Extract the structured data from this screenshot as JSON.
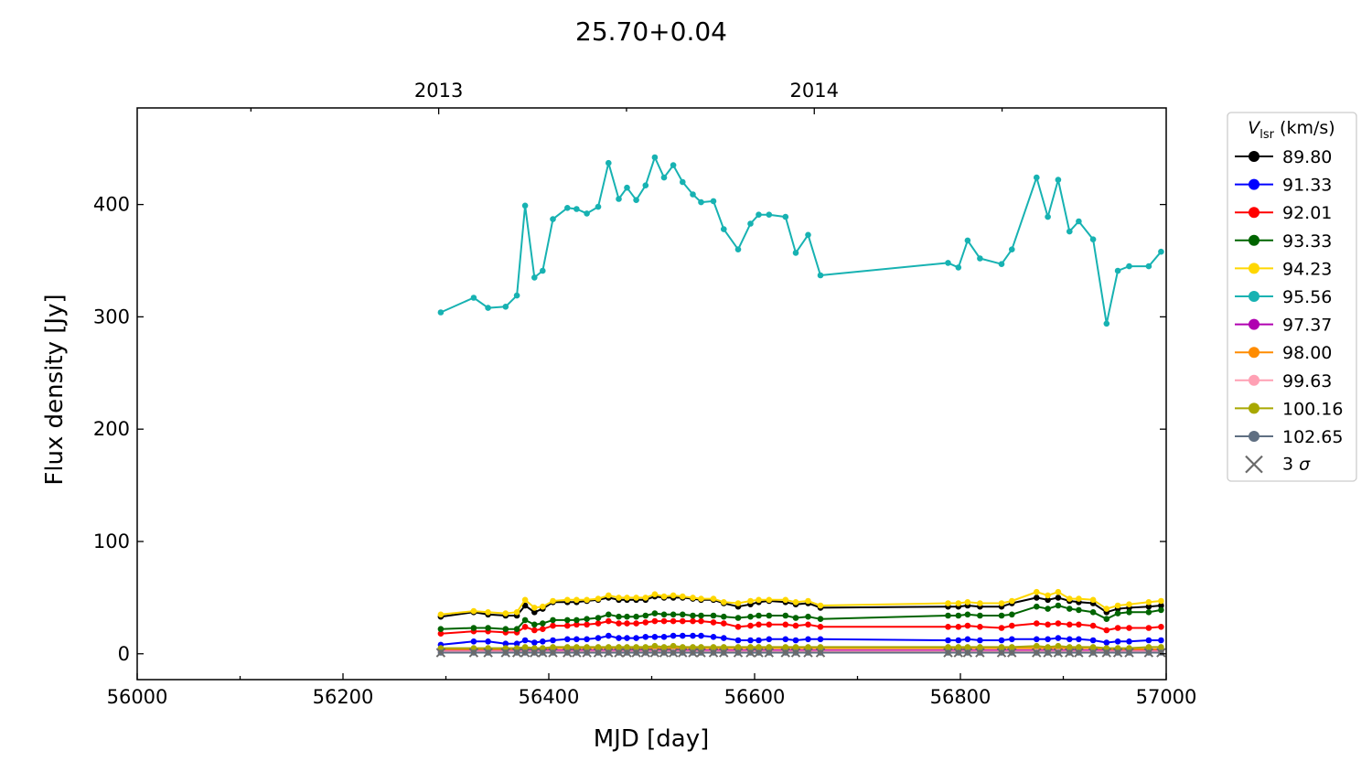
{
  "chart_data": {
    "type": "line",
    "title": "25.70+0.04",
    "xlabel": "MJD [day]",
    "ylabel": "Flux density [Jy]",
    "xlim": [
      56000,
      57000
    ],
    "ylim": [
      -23,
      486
    ],
    "x_ticks": [
      "56000",
      "56200",
      "56400",
      "56600",
      "56800",
      "57000"
    ],
    "y_ticks": [
      "0",
      "100",
      "200",
      "300",
      "400"
    ],
    "top_axis_ticks": [
      {
        "label": "2013",
        "x": 56293
      },
      {
        "label": "2014",
        "x": 56658
      }
    ],
    "grid": false,
    "legend_title": "V_lsr (km/s)",
    "legend_title_main": "V",
    "legend_title_sub": "lsr",
    "legend_title_unit": " (km/s)",
    "legend_placement": "outside-right",
    "x": [
      56295,
      56327,
      56341,
      56358,
      56369,
      56377,
      56386,
      56394,
      56404,
      56418,
      56427,
      56437,
      56448,
      56458,
      56468,
      56476,
      56485,
      56494,
      56503,
      56512,
      56521,
      56530,
      56540,
      56548,
      56560,
      56570,
      56584,
      56596,
      56604,
      56614,
      56630,
      56640,
      56652,
      56664,
      56788,
      56798,
      56807,
      56819,
      56840,
      56850,
      56874,
      56885,
      56895,
      56906,
      56915,
      56929,
      56942,
      56953,
      56964,
      56983,
      56995
    ],
    "series": [
      {
        "name": "89.80",
        "color": "#000000",
        "values": [
          33,
          37,
          35,
          34,
          34,
          43,
          37,
          40,
          46,
          46,
          46,
          47,
          48,
          50,
          48,
          48,
          48,
          48,
          51,
          50,
          50,
          50,
          49,
          48,
          48,
          45,
          42,
          44,
          46,
          47,
          46,
          44,
          45,
          41,
          42,
          42,
          43,
          42,
          42,
          45,
          50,
          48,
          50,
          47,
          46,
          45,
          37,
          40,
          41,
          42,
          43
        ]
      },
      {
        "name": "91.33",
        "color": "#0000ff",
        "values": [
          8,
          11,
          11,
          9,
          9,
          12,
          10,
          11,
          12,
          13,
          13,
          13,
          14,
          16,
          14,
          14,
          14,
          15,
          15,
          15,
          16,
          16,
          16,
          16,
          15,
          14,
          12,
          12,
          12,
          13,
          13,
          12,
          13,
          13,
          12,
          12,
          13,
          12,
          12,
          13,
          13,
          13,
          14,
          13,
          13,
          12,
          10,
          11,
          11,
          12,
          12
        ]
      },
      {
        "name": "92.01",
        "color": "#ff0000",
        "values": [
          18,
          20,
          20,
          19,
          19,
          24,
          21,
          22,
          25,
          25,
          26,
          26,
          27,
          29,
          27,
          27,
          27,
          28,
          29,
          29,
          29,
          29,
          29,
          29,
          28,
          27,
          24,
          25,
          26,
          26,
          26,
          25,
          26,
          24,
          24,
          24,
          25,
          24,
          23,
          25,
          27,
          26,
          27,
          26,
          26,
          25,
          21,
          23,
          23,
          23,
          24
        ]
      },
      {
        "name": "93.33",
        "color": "#006400",
        "values": [
          22,
          23,
          23,
          22,
          22,
          30,
          26,
          27,
          30,
          30,
          30,
          31,
          32,
          35,
          33,
          33,
          33,
          34,
          36,
          35,
          35,
          35,
          34,
          34,
          34,
          33,
          32,
          33,
          34,
          34,
          34,
          32,
          33,
          31,
          34,
          34,
          35,
          34,
          34,
          35,
          42,
          40,
          43,
          40,
          39,
          37,
          31,
          36,
          37,
          37,
          39
        ]
      },
      {
        "name": "94.23",
        "color": "#ffd700",
        "values": [
          35,
          38,
          37,
          36,
          37,
          48,
          41,
          42,
          47,
          48,
          48,
          48,
          49,
          52,
          50,
          50,
          50,
          50,
          53,
          51,
          52,
          51,
          50,
          49,
          49,
          46,
          45,
          47,
          48,
          48,
          48,
          46,
          47,
          43,
          45,
          45,
          46,
          45,
          45,
          47,
          55,
          52,
          55,
          49,
          49,
          48,
          40,
          43,
          44,
          46,
          47
        ]
      },
      {
        "name": "95.56",
        "color": "#17b2b2",
        "values": [
          304,
          317,
          308,
          309,
          319,
          399,
          335,
          341,
          387,
          397,
          396,
          392,
          398,
          437,
          405,
          415,
          404,
          417,
          442,
          424,
          435,
          420,
          409,
          402,
          403,
          378,
          360,
          383,
          391,
          391,
          389,
          357,
          373,
          337,
          348,
          344,
          368,
          352,
          347,
          360,
          424,
          389,
          422,
          376,
          385,
          369,
          294,
          341,
          345,
          345,
          358
        ]
      },
      {
        "name": "97.37",
        "color": "#b000b0",
        "values": [
          3,
          3,
          3,
          3,
          3,
          3,
          3,
          3,
          3,
          3,
          3,
          3,
          3,
          3,
          3,
          3,
          3,
          3,
          3,
          3,
          3,
          3,
          3,
          3,
          3,
          3,
          3,
          3,
          3,
          3,
          3,
          3,
          3,
          3,
          3,
          3,
          3,
          3,
          3,
          3,
          3,
          3,
          3,
          3,
          3,
          3,
          3,
          3,
          3,
          3,
          3
        ]
      },
      {
        "name": "98.00",
        "color": "#ff8c00",
        "values": [
          4,
          4,
          4,
          4,
          4,
          5,
          4,
          4,
          5,
          5,
          5,
          5,
          5,
          5,
          5,
          5,
          5,
          5,
          5,
          5,
          5,
          5,
          5,
          5,
          5,
          5,
          5,
          5,
          5,
          5,
          5,
          5,
          5,
          5,
          5,
          5,
          5,
          5,
          5,
          5,
          5,
          5,
          5,
          5,
          5,
          5,
          4,
          4,
          4,
          4,
          4
        ]
      },
      {
        "name": "99.63",
        "color": "#ffa0b4",
        "values": [
          2,
          2,
          2,
          2,
          2,
          2,
          2,
          2,
          2,
          2,
          2,
          2,
          2,
          2,
          2,
          2,
          2,
          2,
          2,
          2,
          2,
          2,
          2,
          2,
          2,
          2,
          2,
          2,
          2,
          2,
          2,
          2,
          2,
          2,
          2,
          2,
          2,
          2,
          2,
          2,
          2,
          2,
          2,
          2,
          2,
          2,
          2,
          2,
          2,
          2,
          2
        ]
      },
      {
        "name": "100.16",
        "color": "#a8a800",
        "values": [
          5,
          5,
          5,
          5,
          5,
          6,
          5,
          5,
          6,
          6,
          6,
          6,
          6,
          6,
          6,
          6,
          6,
          6,
          7,
          6,
          7,
          6,
          6,
          6,
          6,
          6,
          6,
          6,
          6,
          6,
          6,
          6,
          6,
          6,
          6,
          6,
          6,
          6,
          6,
          6,
          7,
          6,
          7,
          6,
          6,
          6,
          5,
          5,
          5,
          6,
          6
        ]
      },
      {
        "name": "102.65",
        "color": "#5f6f82",
        "values": [
          1,
          1,
          1,
          1,
          1,
          1,
          1,
          1,
          1,
          1,
          1,
          1,
          1,
          1,
          1,
          1,
          1,
          1,
          1,
          1,
          1,
          1,
          1,
          1,
          1,
          1,
          1,
          1,
          1,
          1,
          1,
          1,
          1,
          1,
          1,
          1,
          1,
          1,
          1,
          1,
          1,
          1,
          1,
          1,
          1,
          1,
          1,
          1,
          1,
          1,
          1
        ]
      }
    ],
    "sigma_marker": {
      "label": "3 σ",
      "label_main": "3 ",
      "label_sym": "σ",
      "color": "#6a6a6a",
      "y": 1
    }
  }
}
